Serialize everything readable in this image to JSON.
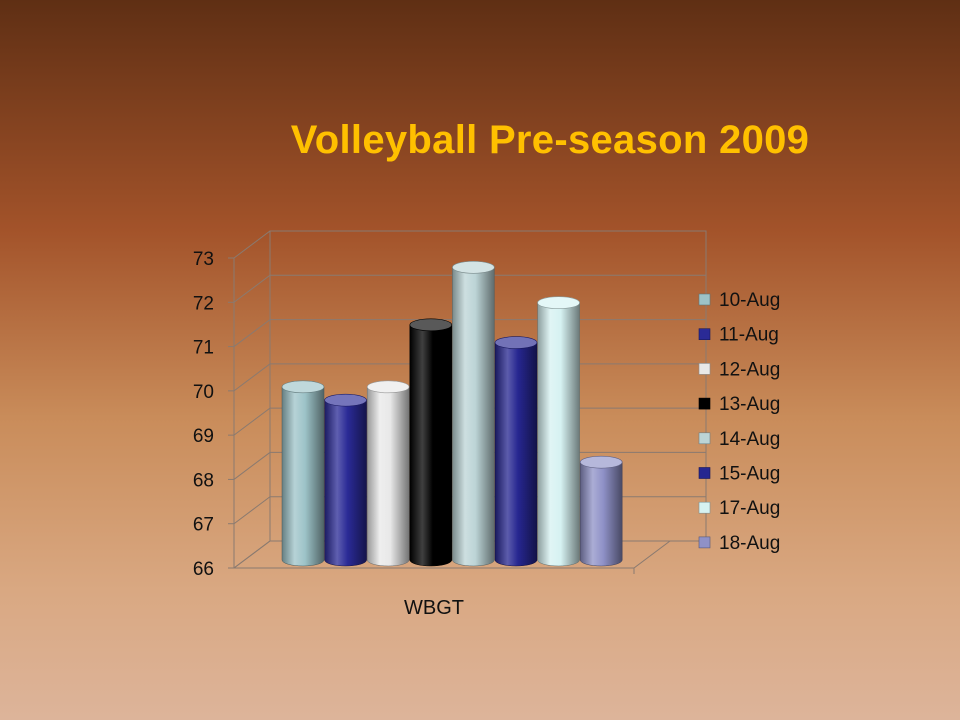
{
  "slide": {
    "title": "Volleyball Pre-season 2009"
  },
  "chart_data": {
    "type": "bar",
    "style": "3d-cylinder",
    "title": "",
    "categories": [
      "WBGT"
    ],
    "xlabel": "",
    "ylabel": "",
    "ylim": [
      66,
      73
    ],
    "yticks": [
      66,
      67,
      68,
      69,
      70,
      71,
      72,
      73
    ],
    "grid": true,
    "legend_position": "right",
    "series": [
      {
        "name": "10-Aug",
        "values": [
          70.0
        ],
        "color": "#9dc3c8"
      },
      {
        "name": "11-Aug",
        "values": [
          69.7
        ],
        "color": "#2a2a96"
      },
      {
        "name": "12-Aug",
        "values": [
          70.0
        ],
        "color": "#e8e8e8"
      },
      {
        "name": "13-Aug",
        "values": [
          71.4
        ],
        "color": "#000000"
      },
      {
        "name": "14-Aug",
        "values": [
          72.7
        ],
        "color": "#bcd4d6"
      },
      {
        "name": "15-Aug",
        "values": [
          71.0
        ],
        "color": "#262690"
      },
      {
        "name": "17-Aug",
        "values": [
          71.9
        ],
        "color": "#d6f2f2"
      },
      {
        "name": "18-Aug",
        "values": [
          68.3
        ],
        "color": "#8f91c7"
      }
    ]
  }
}
